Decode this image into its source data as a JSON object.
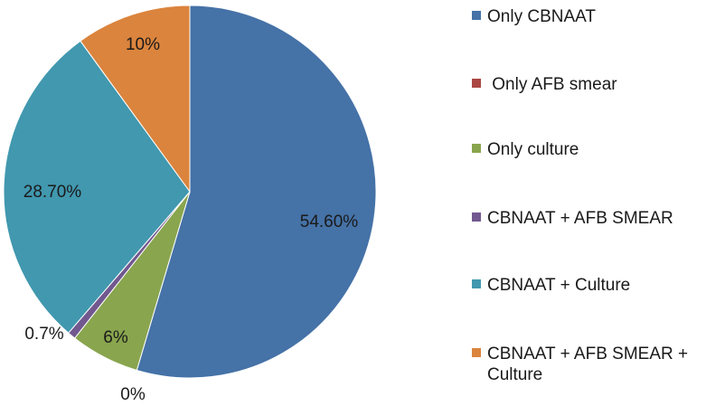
{
  "chart_data": {
    "type": "pie",
    "title": "",
    "legend_position": "right",
    "start_angle_deg": 0,
    "direction": "clockwise",
    "slices": [
      {
        "name": "Only CBNAAT",
        "value": 54.6,
        "label": "54.60%",
        "color": "#4572a7"
      },
      {
        "name": " Only AFB smear",
        "value": 0,
        "label": "0%",
        "color": "#aa4643"
      },
      {
        "name": "Only culture",
        "value": 6,
        "label": "6%",
        "color": "#89a54e"
      },
      {
        "name": "CBNAAT + AFB SMEAR",
        "value": 0.7,
        "label": "0.7%",
        "color": "#71588f"
      },
      {
        "name": "CBNAAT + Culture",
        "value": 28.7,
        "label": "28.70%",
        "color": "#4198af"
      },
      {
        "name": "CBNAAT + AFB SMEAR + Culture",
        "value": 10,
        "label": "10%",
        "color": "#db843d"
      }
    ]
  }
}
